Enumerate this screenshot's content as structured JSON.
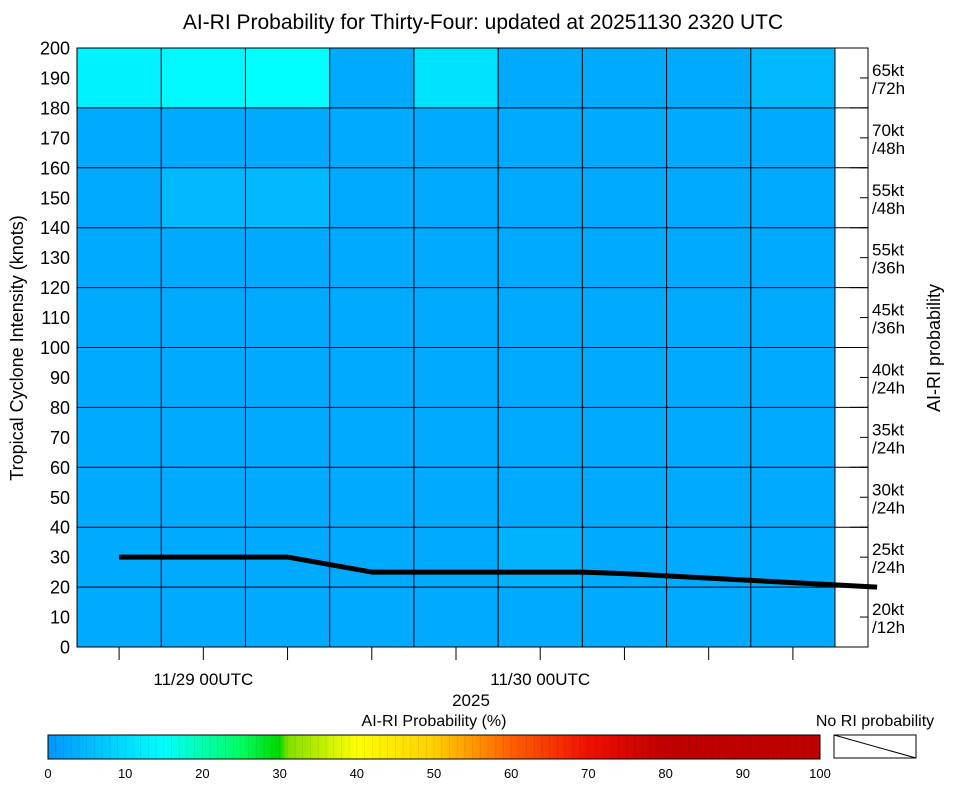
{
  "chart_data": {
    "type": "heatmap",
    "title": "AI-RI Probability for Thirty-Four: updated at 20251130 2320 UTC",
    "ylabel": "Tropical Cyclone Intensity (knots)",
    "right_label": "AI-RI probability",
    "ylim": [
      0,
      200
    ],
    "y_ticks": [
      0,
      10,
      20,
      30,
      40,
      50,
      60,
      70,
      80,
      90,
      100,
      110,
      120,
      130,
      140,
      150,
      160,
      170,
      180,
      190,
      200
    ],
    "x_tick_labels": [
      {
        "label": "11/29 00UTC",
        "column": 2
      },
      {
        "label": "11/30 00UTC",
        "column": 6
      }
    ],
    "x_year_label": "2025",
    "right_labels": [
      {
        "top": "65kt",
        "bottom": "/72h"
      },
      {
        "top": "70kt",
        "bottom": "/48h"
      },
      {
        "top": "55kt",
        "bottom": "/48h"
      },
      {
        "top": "55kt",
        "bottom": "/36h"
      },
      {
        "top": "45kt",
        "bottom": "/36h"
      },
      {
        "top": "40kt",
        "bottom": "/24h"
      },
      {
        "top": "35kt",
        "bottom": "/24h"
      },
      {
        "top": "30kt",
        "bottom": "/24h"
      },
      {
        "top": "25kt",
        "bottom": "/24h"
      },
      {
        "top": "20kt",
        "bottom": "/12h"
      }
    ],
    "cell_probability_pct": [
      [
        13,
        14,
        15,
        3,
        11,
        3,
        3,
        3,
        5
      ],
      [
        3,
        3,
        3,
        3,
        3,
        3,
        3,
        3,
        3
      ],
      [
        3,
        5,
        5,
        3,
        3,
        3,
        3,
        3,
        3
      ],
      [
        3,
        3,
        3,
        3,
        3,
        3,
        3,
        3,
        3
      ],
      [
        3,
        3,
        3,
        3,
        3,
        3,
        3,
        3,
        3
      ],
      [
        3,
        3,
        3,
        3,
        3,
        3,
        3,
        3,
        3
      ],
      [
        3,
        3,
        3,
        3,
        3,
        3,
        3,
        3,
        3
      ],
      [
        3,
        3,
        3,
        3,
        3,
        3,
        3,
        3,
        3
      ],
      [
        3,
        3,
        3,
        3,
        3,
        4,
        3,
        3,
        3
      ],
      [
        3,
        3,
        3,
        3,
        3,
        3,
        3,
        3,
        3
      ]
    ],
    "intensity_series": {
      "x_column_units": [
        0.5,
        1.0,
        1.5,
        2.0,
        2.5,
        3.0,
        3.5,
        4.0,
        4.5,
        5.0,
        5.5,
        6.0,
        6.5,
        7.0,
        7.5,
        8.0,
        8.5,
        9.0,
        9.5
      ],
      "values": [
        30,
        30,
        30,
        30,
        30,
        27.5,
        25,
        25,
        25,
        25,
        25,
        25,
        24.5,
        23.75,
        23,
        22.25,
        21.5,
        20.75,
        20
      ]
    },
    "colorbar": {
      "label": "AI-RI Probability (%)",
      "ticks": [
        0,
        10,
        20,
        30,
        40,
        50,
        60,
        70,
        80,
        90,
        100
      ],
      "range": [
        0,
        100
      ],
      "no_ri_label": "No RI probability",
      "stops": [
        {
          "value": 0,
          "color": "#0096ff"
        },
        {
          "value": 15,
          "color": "#00ffff"
        },
        {
          "value": 25,
          "color": "#00ff60"
        },
        {
          "value": 30,
          "color": "#00d800"
        },
        {
          "value": 31,
          "color": "#80e000"
        },
        {
          "value": 40,
          "color": "#ffff00"
        },
        {
          "value": 50,
          "color": "#ffd000"
        },
        {
          "value": 60,
          "color": "#ff6000"
        },
        {
          "value": 70,
          "color": "#f01000"
        },
        {
          "value": 80,
          "color": "#c00000"
        },
        {
          "value": 100,
          "color": "#c00000"
        }
      ]
    }
  }
}
